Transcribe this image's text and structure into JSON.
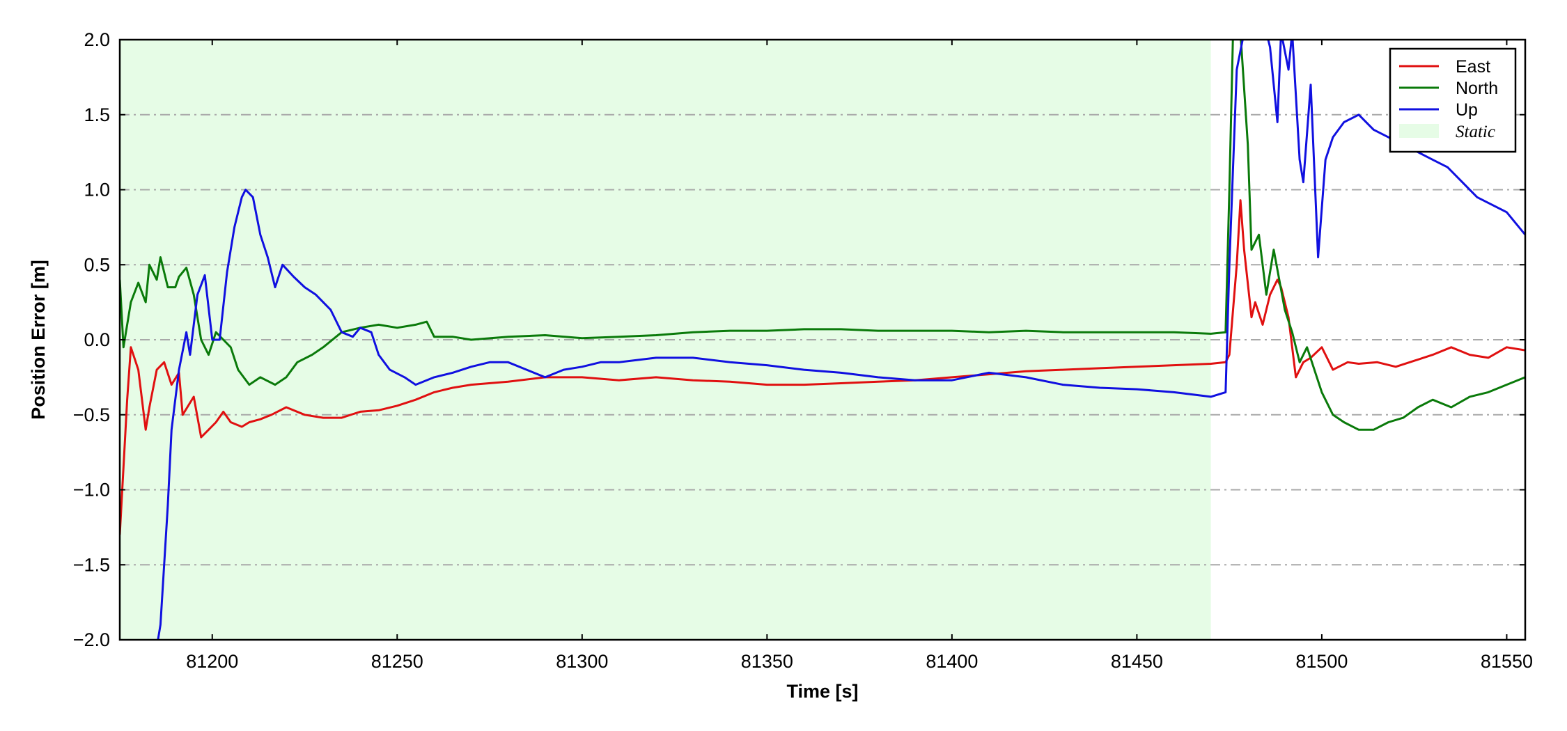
{
  "chart_data": {
    "type": "line",
    "title": "",
    "xlabel": "Time [s]",
    "ylabel": "Position Error [m]",
    "xlim": [
      81175,
      81555
    ],
    "ylim": [
      -2.0,
      2.0
    ],
    "xticks": [
      81200,
      81250,
      81300,
      81350,
      81400,
      81450,
      81500,
      81550
    ],
    "yticks": [
      -2.0,
      -1.5,
      -1.0,
      -0.5,
      0.0,
      0.5,
      1.0,
      1.5,
      2.0
    ],
    "ytick_labels": [
      "−2.0",
      "−1.5",
      "−1.0",
      "−0.5",
      "0.0",
      "0.5",
      "1.0",
      "1.5",
      "2.0"
    ],
    "grid": "horizontal dash-dot",
    "legend_position": "top-right",
    "shaded_regions": [
      {
        "name": "Static",
        "x_start": 81175,
        "x_end": 81470,
        "color": "#e6fce6"
      }
    ],
    "series": [
      {
        "name": "East",
        "color": "#e01010",
        "x": [
          81175,
          81177,
          81178,
          81180,
          81182,
          81183,
          81185,
          81187,
          81189,
          81191,
          81192,
          81194,
          81195,
          81197,
          81199,
          81201,
          81203,
          81205,
          81208,
          81210,
          81213,
          81216,
          81220,
          81225,
          81230,
          81235,
          81240,
          81245,
          81250,
          81255,
          81260,
          81265,
          81270,
          81280,
          81290,
          81300,
          81310,
          81320,
          81330,
          81340,
          81350,
          81360,
          81370,
          81380,
          81390,
          81400,
          81410,
          81420,
          81430,
          81440,
          81450,
          81460,
          81470,
          81474,
          81475,
          81477,
          81478,
          81479,
          81481,
          81482,
          81484,
          81486,
          81488,
          81489,
          81491,
          81492,
          81493,
          81495,
          81497,
          81500,
          81503,
          81507,
          81510,
          81515,
          81520,
          81525,
          81530,
          81535,
          81540,
          81545,
          81550,
          81555
        ],
        "y": [
          -1.3,
          -0.4,
          -0.05,
          -0.2,
          -0.6,
          -0.45,
          -0.2,
          -0.15,
          -0.3,
          -0.22,
          -0.5,
          -0.42,
          -0.38,
          -0.65,
          -0.6,
          -0.55,
          -0.48,
          -0.55,
          -0.58,
          -0.55,
          -0.53,
          -0.5,
          -0.45,
          -0.5,
          -0.52,
          -0.52,
          -0.48,
          -0.47,
          -0.44,
          -0.4,
          -0.35,
          -0.32,
          -0.3,
          -0.28,
          -0.25,
          -0.25,
          -0.27,
          -0.25,
          -0.27,
          -0.28,
          -0.3,
          -0.3,
          -0.29,
          -0.28,
          -0.27,
          -0.25,
          -0.23,
          -0.21,
          -0.2,
          -0.19,
          -0.18,
          -0.17,
          -0.16,
          -0.15,
          -0.1,
          0.5,
          0.93,
          0.6,
          0.15,
          0.25,
          0.1,
          0.3,
          0.4,
          0.35,
          0.15,
          -0.05,
          -0.25,
          -0.15,
          -0.12,
          -0.05,
          -0.2,
          -0.15,
          -0.16,
          -0.15,
          -0.18,
          -0.14,
          -0.1,
          -0.05,
          -0.1,
          -0.12,
          -0.05,
          -0.07
        ]
      },
      {
        "name": "North",
        "color": "#0a7a0a",
        "x": [
          81175,
          81176,
          81178,
          81180,
          81182,
          81183,
          81185,
          81186,
          81188,
          81190,
          81191,
          81193,
          81195,
          81197,
          81199,
          81201,
          81203,
          81205,
          81207,
          81210,
          81213,
          81217,
          81220,
          81223,
          81227,
          81230,
          81235,
          81240,
          81245,
          81250,
          81255,
          81258,
          81260,
          81265,
          81270,
          81280,
          81290,
          81300,
          81310,
          81320,
          81330,
          81340,
          81350,
          81360,
          81370,
          81380,
          81390,
          81400,
          81410,
          81420,
          81430,
          81440,
          81450,
          81460,
          81470,
          81474,
          81475,
          81476,
          81478,
          81480,
          81481,
          81483,
          81485,
          81487,
          81490,
          81492,
          81494,
          81496,
          81498,
          81500,
          81503,
          81506,
          81510,
          81514,
          81518,
          81522,
          81526,
          81530,
          81535,
          81540,
          81545,
          81550,
          81555
        ],
        "y": [
          0.4,
          -0.05,
          0.25,
          0.38,
          0.25,
          0.5,
          0.4,
          0.55,
          0.35,
          0.35,
          0.42,
          0.48,
          0.3,
          0.0,
          -0.1,
          0.05,
          0.0,
          -0.05,
          -0.2,
          -0.3,
          -0.25,
          -0.3,
          -0.25,
          -0.15,
          -0.1,
          -0.05,
          0.05,
          0.08,
          0.1,
          0.08,
          0.1,
          0.12,
          0.02,
          0.02,
          0.0,
          0.02,
          0.03,
          0.01,
          0.02,
          0.03,
          0.05,
          0.06,
          0.06,
          0.07,
          0.07,
          0.06,
          0.06,
          0.06,
          0.05,
          0.06,
          0.05,
          0.05,
          0.05,
          0.05,
          0.04,
          0.05,
          1.0,
          2.05,
          2.05,
          1.3,
          0.6,
          0.7,
          0.3,
          0.6,
          0.2,
          0.05,
          -0.15,
          -0.05,
          -0.2,
          -0.35,
          -0.5,
          -0.55,
          -0.6,
          -0.6,
          -0.55,
          -0.52,
          -0.45,
          -0.4,
          -0.45,
          -0.38,
          -0.35,
          -0.3,
          -0.25
        ]
      },
      {
        "name": "Up",
        "color": "#1010e0",
        "x": [
          81175,
          81185,
          81186,
          81187,
          81188,
          81189,
          81191,
          81193,
          81194,
          81196,
          81198,
          81200,
          81202,
          81204,
          81206,
          81208,
          81209,
          81211,
          81213,
          81215,
          81217,
          81219,
          81222,
          81225,
          81228,
          81232,
          81235,
          81238,
          81240,
          81243,
          81245,
          81248,
          81252,
          81255,
          81260,
          81265,
          81270,
          81275,
          81280,
          81285,
          81290,
          81295,
          81300,
          81305,
          81310,
          81320,
          81330,
          81340,
          81350,
          81360,
          81370,
          81380,
          81390,
          81400,
          81410,
          81420,
          81430,
          81440,
          81450,
          81460,
          81470,
          81474,
          81475,
          81477,
          81479,
          81481,
          81483,
          81485,
          81486,
          81488,
          81489,
          81491,
          81492,
          81494,
          81495,
          81497,
          81499,
          81501,
          81503,
          81506,
          81510,
          81514,
          81518,
          81522,
          81526,
          81530,
          81534,
          81538,
          81542,
          81546,
          81550,
          81555
        ],
        "y": [
          -2.05,
          -2.05,
          -1.9,
          -1.5,
          -1.1,
          -0.6,
          -0.2,
          0.05,
          -0.1,
          0.3,
          0.43,
          0.0,
          0.0,
          0.45,
          0.75,
          0.95,
          1.0,
          0.95,
          0.7,
          0.55,
          0.35,
          0.5,
          0.42,
          0.35,
          0.3,
          0.2,
          0.05,
          0.02,
          0.08,
          0.05,
          -0.1,
          -0.2,
          -0.25,
          -0.3,
          -0.25,
          -0.22,
          -0.18,
          -0.15,
          -0.15,
          -0.2,
          -0.25,
          -0.2,
          -0.18,
          -0.15,
          -0.15,
          -0.12,
          -0.12,
          -0.15,
          -0.17,
          -0.2,
          -0.22,
          -0.25,
          -0.27,
          -0.27,
          -0.22,
          -0.25,
          -0.3,
          -0.32,
          -0.33,
          -0.35,
          -0.38,
          -0.35,
          0.5,
          1.8,
          2.05,
          2.05,
          2.05,
          2.05,
          1.95,
          1.45,
          2.05,
          1.8,
          2.05,
          1.2,
          1.05,
          1.7,
          0.55,
          1.2,
          1.35,
          1.45,
          1.5,
          1.4,
          1.35,
          1.3,
          1.25,
          1.2,
          1.15,
          1.05,
          0.95,
          0.9,
          0.85,
          0.7
        ]
      }
    ]
  }
}
